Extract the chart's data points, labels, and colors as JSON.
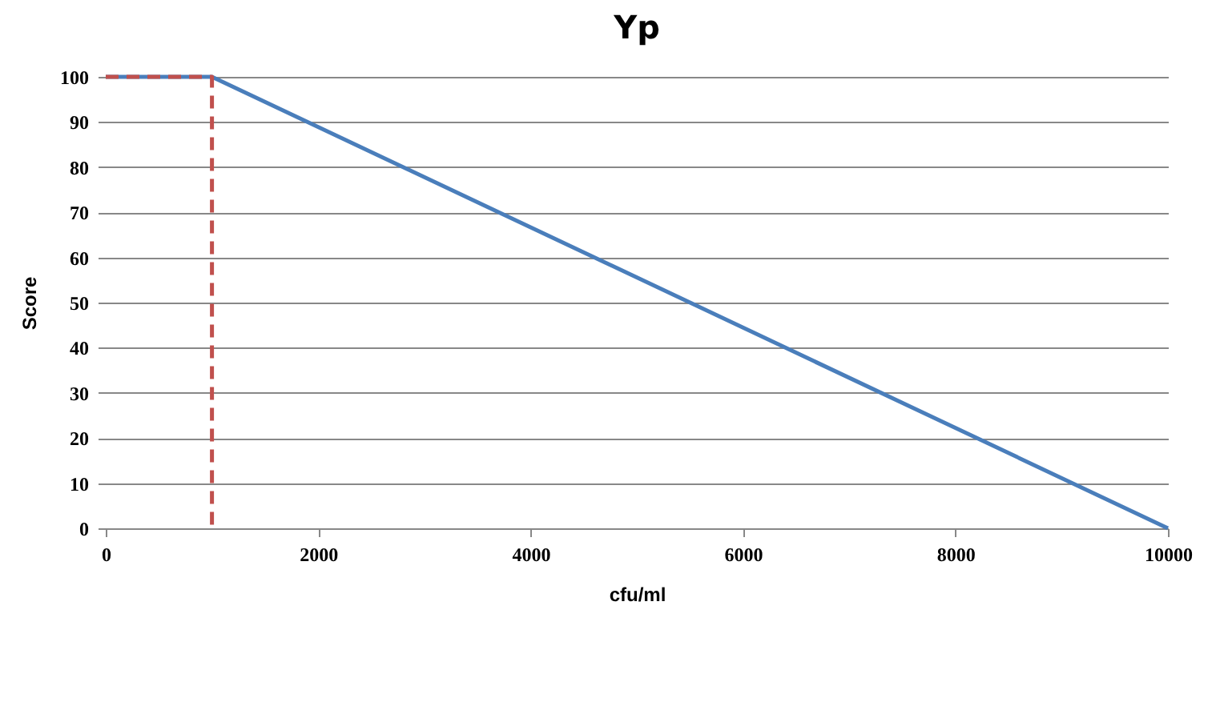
{
  "chart_data": {
    "type": "line",
    "title": "Yp",
    "xlabel": "cfu/ml",
    "ylabel": "Score",
    "series": [
      {
        "color": "#4a7ebb",
        "x": [
          0,
          1000,
          10000
        ],
        "values": [
          100,
          100,
          0
        ],
        "line_style": "solid"
      },
      {
        "color": "#c0504d",
        "x": [
          0,
          1000,
          1000
        ],
        "values": [
          100,
          100,
          0
        ],
        "line_style": "dashed"
      }
    ],
    "xlim": [
      0,
      10000
    ],
    "xticks": [
      0,
      2000,
      4000,
      6000,
      8000,
      10000
    ],
    "ylim": [
      0,
      100
    ],
    "yticks": [
      0,
      10,
      20,
      30,
      40,
      50,
      60,
      70,
      80,
      90,
      100
    ],
    "grid": "y"
  }
}
